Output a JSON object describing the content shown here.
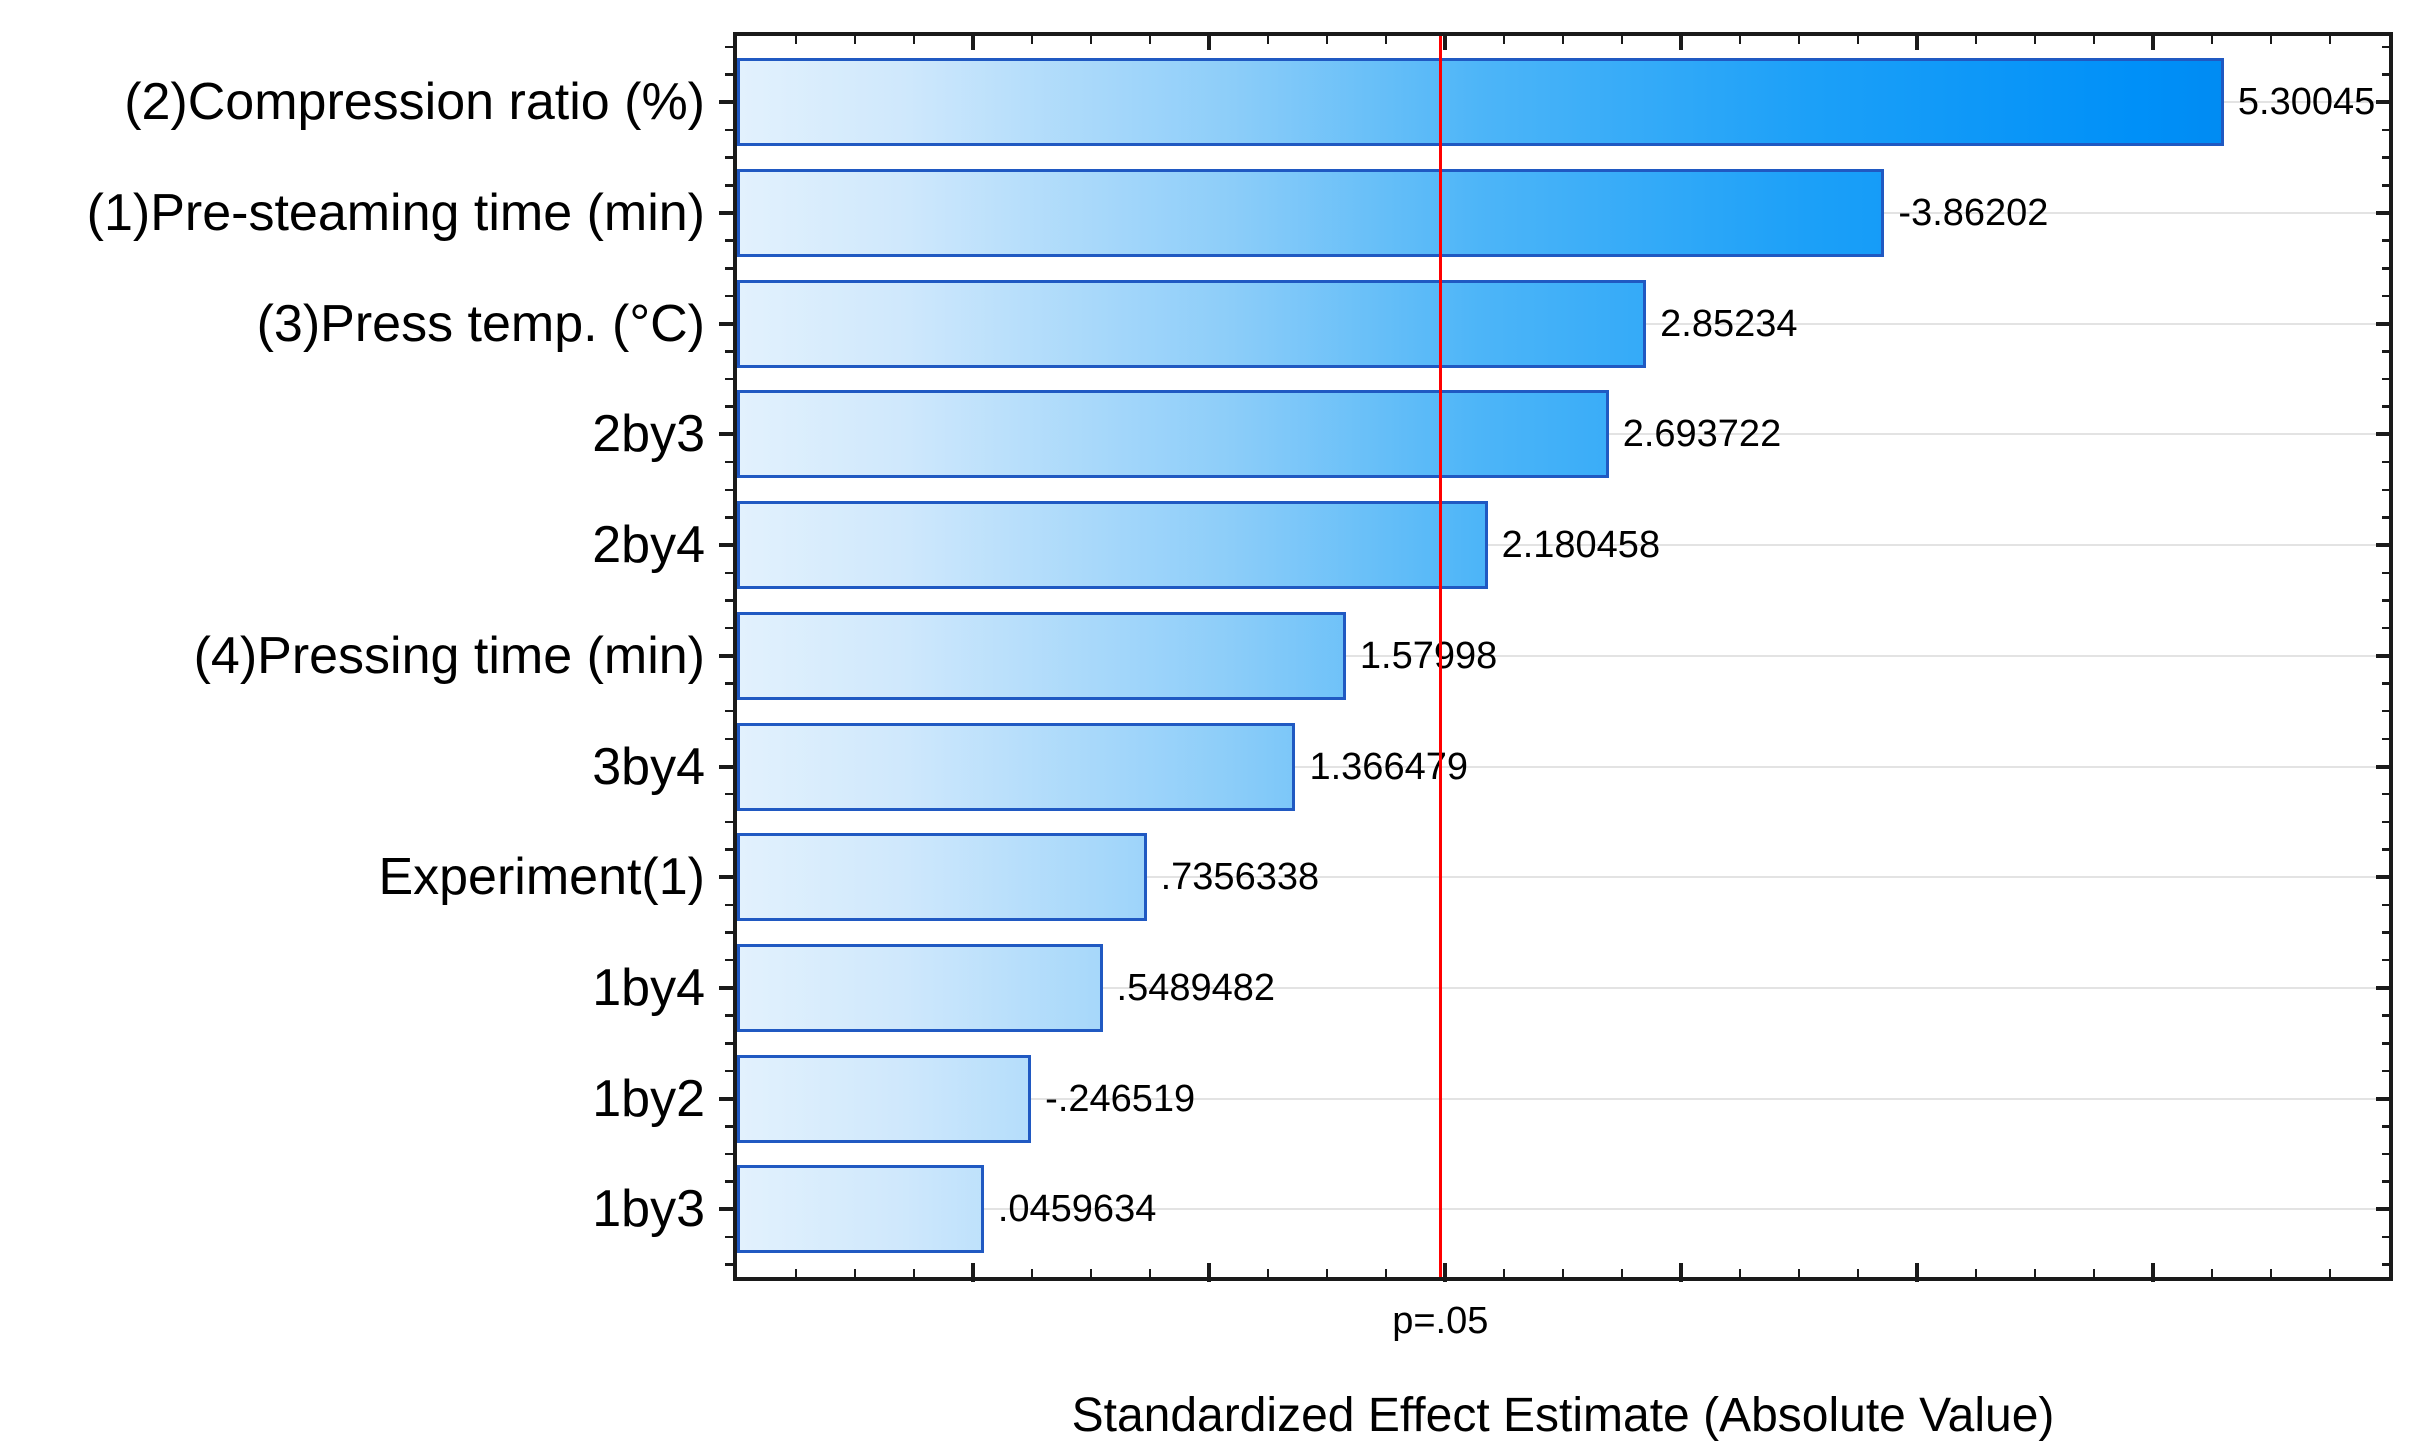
{
  "chart_data": {
    "type": "bar",
    "orientation": "horizontal",
    "title": "",
    "xlabel": "Standardized Effect Estimate (Absolute Value)",
    "categories": [
      "(2)Compression ratio (%)",
      "(1)Pre-steaming time (min)",
      "(3)Press temp. (°C)",
      "2by3",
      "2by4",
      "(4)Pressing time (min)",
      "3by4",
      "Experiment(1)",
      "1by4",
      "1by2",
      "1by3"
    ],
    "values": [
      5.30045,
      -3.86202,
      2.85234,
      2.693722,
      2.180458,
      1.57998,
      1.366479,
      0.7356338,
      0.5489482,
      -0.246519,
      0.0459634
    ],
    "value_labels": [
      "5.30045",
      "-3.86202",
      "2.85234",
      "2.693722",
      "2.180458",
      "1.57998",
      "1.366479",
      ".7356338",
      ".5489482",
      "-.246519",
      ".0459634"
    ],
    "xlim": [
      -1,
      6
    ],
    "x_minor_tick_step": 0.25,
    "x_major_tick_step": 1.0,
    "grid": "horizontal-category-gridlines",
    "legend": "none",
    "reference_line": {
      "label": "p=.05",
      "x": 1.98,
      "color": "#ff0000"
    },
    "colors": {
      "bar_border": "#2059c2",
      "bar_gradient_start": "#e2f1fd",
      "bar_gradient_end": "#0082e8",
      "bar_gradient_stops": [
        [
          0.0,
          "#e2f1fd"
        ],
        [
          0.1,
          "#cfe8fc"
        ],
        [
          0.3,
          "#8ccdf9"
        ],
        [
          0.45,
          "#4db5f8"
        ],
        [
          0.65,
          "#1ca0f8"
        ],
        [
          0.85,
          "#0090f8"
        ],
        [
          1.0,
          "#0082e8"
        ]
      ],
      "frame": "#1a1a1a",
      "gridline": "#e3e3e3",
      "reference_line": "#ff0000",
      "text": "#000000"
    }
  }
}
